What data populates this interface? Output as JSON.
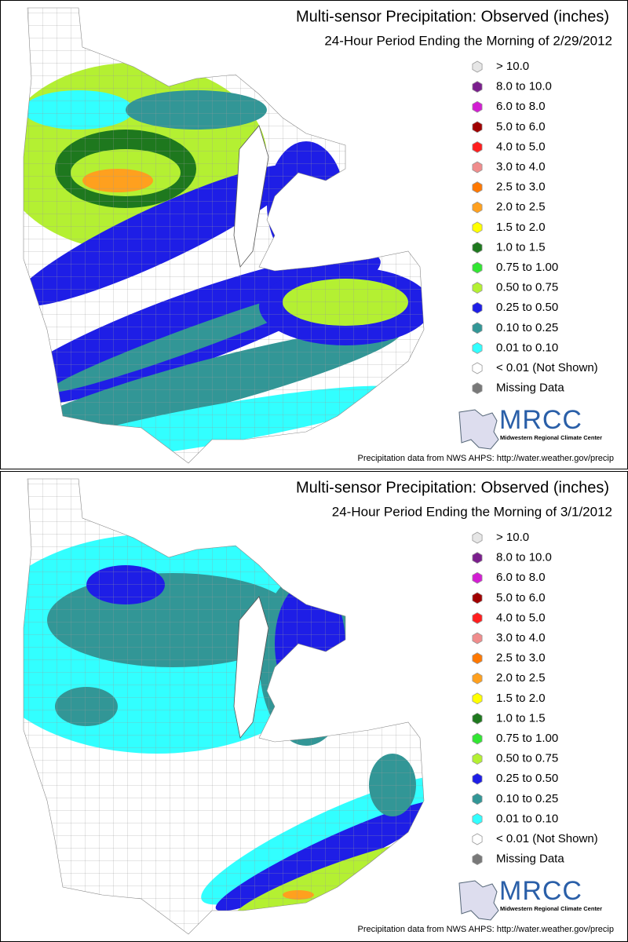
{
  "panels": [
    {
      "title": "Multi-sensor Precipitation: Observed (inches)",
      "subtitle": "24-Hour Period Ending the Morning of 2/29/2012",
      "legend": [
        {
          "label": "> 10.0",
          "color": "#e6e6e6"
        },
        {
          "label": "8.0 to 10.0",
          "color": "#7a1e8c"
        },
        {
          "label": "6.0 to 8.0",
          "color": "#d21ed2"
        },
        {
          "label": "5.0 to 6.0",
          "color": "#a00000"
        },
        {
          "label": "4.0 to 5.0",
          "color": "#ff1e1e"
        },
        {
          "label": "3.0 to 4.0",
          "color": "#f08c8c"
        },
        {
          "label": "2.5 to 3.0",
          "color": "#ff7800"
        },
        {
          "label": "2.0 to 2.5",
          "color": "#ffa01e"
        },
        {
          "label": "1.5 to 2.0",
          "color": "#ffff00"
        },
        {
          "label": "1.0 to 1.5",
          "color": "#1e781e"
        },
        {
          "label": "0.75 to 1.00",
          "color": "#32e632"
        },
        {
          "label": "0.50 to 0.75",
          "color": "#b4f032"
        },
        {
          "label": "0.25 to 0.50",
          "color": "#1e1ee6"
        },
        {
          "label": "0.10 to 0.25",
          "color": "#329696"
        },
        {
          "label": "0.01 to 0.10",
          "color": "#32ffff"
        },
        {
          "label": "< 0.01 (Not Shown)",
          "color": "#ffffff"
        },
        {
          "label": "Missing Data",
          "color": "#787878"
        }
      ],
      "logo": {
        "name": "MRCC",
        "tagline": "Midwestern Regional Climate Center"
      },
      "source": "Precipitation data from NWS AHPS:  http://water.weather.gov/precip"
    },
    {
      "title": "Multi-sensor Precipitation: Observed (inches)",
      "subtitle": "24-Hour Period Ending the Morning of 3/1/2012",
      "legend": [
        {
          "label": "> 10.0",
          "color": "#e6e6e6"
        },
        {
          "label": "8.0 to 10.0",
          "color": "#7a1e8c"
        },
        {
          "label": "6.0 to 8.0",
          "color": "#d21ed2"
        },
        {
          "label": "5.0 to 6.0",
          "color": "#a00000"
        },
        {
          "label": "4.0 to 5.0",
          "color": "#ff1e1e"
        },
        {
          "label": "3.0 to 4.0",
          "color": "#f08c8c"
        },
        {
          "label": "2.5 to 3.0",
          "color": "#ff7800"
        },
        {
          "label": "2.0 to 2.5",
          "color": "#ffa01e"
        },
        {
          "label": "1.5 to 2.0",
          "color": "#ffff00"
        },
        {
          "label": "1.0 to 1.5",
          "color": "#1e781e"
        },
        {
          "label": "0.75 to 1.00",
          "color": "#32e632"
        },
        {
          "label": "0.50 to 0.75",
          "color": "#b4f032"
        },
        {
          "label": "0.25 to 0.50",
          "color": "#1e1ee6"
        },
        {
          "label": "0.10 to 0.25",
          "color": "#329696"
        },
        {
          "label": "0.01 to 0.10",
          "color": "#32ffff"
        },
        {
          "label": "< 0.01 (Not Shown)",
          "color": "#ffffff"
        },
        {
          "label": "Missing Data",
          "color": "#787878"
        }
      ],
      "logo": {
        "name": "MRCC",
        "tagline": "Midwestern Regional Climate Center"
      },
      "source": "Precipitation data from NWS AHPS:  http://water.weather.gov/precip"
    }
  ]
}
